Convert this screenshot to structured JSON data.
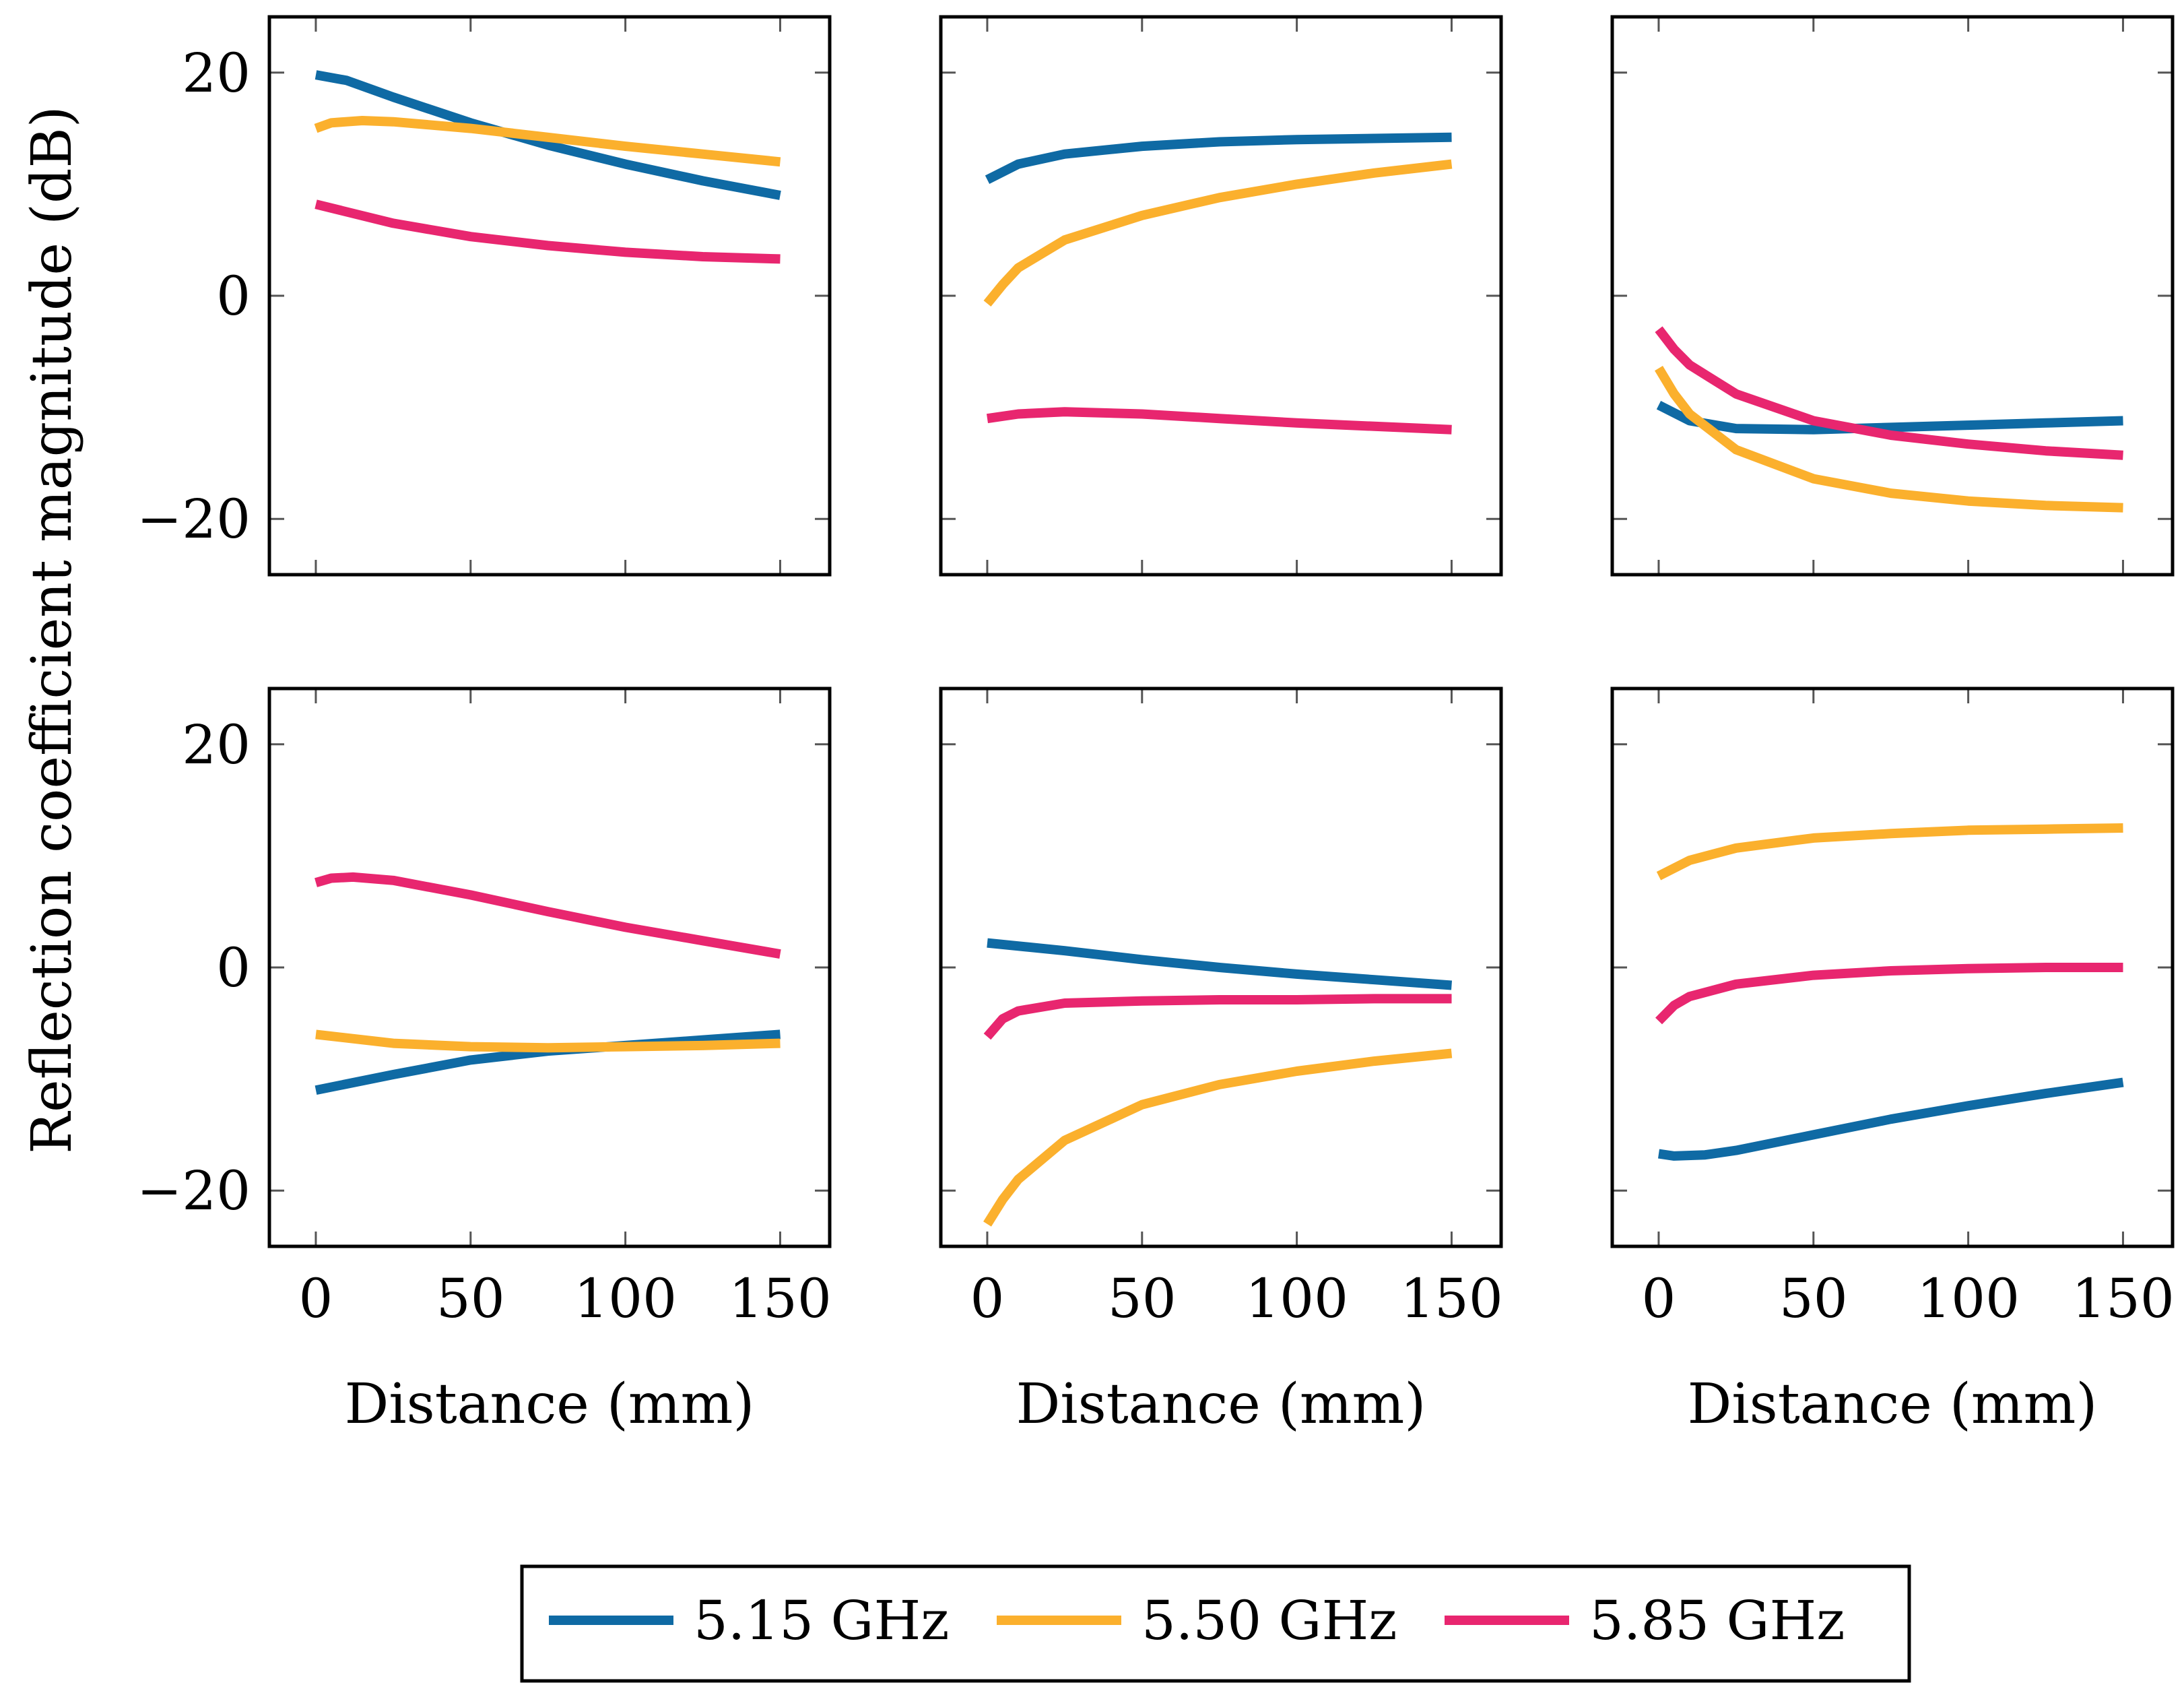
{
  "chart_data": {
    "type": "line",
    "layout": "2 rows x 3 columns",
    "shared_x": true,
    "shared_y": true,
    "ylabel": "Reflection coefficient magnitude (dB)",
    "xlabel": "Distance (mm)",
    "xlim": [
      -15,
      166
    ],
    "ylim": [
      -25,
      25
    ],
    "xticks": [
      0,
      50,
      100,
      150
    ],
    "yticks": [
      20,
      0,
      -20
    ],
    "ytick_labels": [
      "20",
      "0",
      "−20"
    ],
    "legend": {
      "placement": "bottom-center",
      "entries": [
        {
          "label": "5.15 GHz",
          "color": "#0f6aa4"
        },
        {
          "label": "5.50 GHz",
          "color": "#fbb02d"
        },
        {
          "label": "5.85 GHz",
          "color": "#e8266f"
        }
      ]
    },
    "panels": [
      {
        "row": 1,
        "col": 1,
        "series": [
          {
            "name": "5.15 GHz",
            "x": [
              0,
              10,
              25,
              50,
              75,
              100,
              125,
              150
            ],
            "y": [
              19.8,
              19.3,
              17.8,
              15.5,
              13.5,
              11.8,
              10.3,
              9.0
            ]
          },
          {
            "name": "5.50 GHz",
            "x": [
              0,
              5,
              15,
              25,
              50,
              75,
              100,
              125,
              150
            ],
            "y": [
              15.0,
              15.5,
              15.7,
              15.6,
              15.0,
              14.2,
              13.4,
              12.7,
              12.0
            ]
          },
          {
            "name": "5.85 GHz",
            "x": [
              0,
              25,
              50,
              75,
              100,
              125,
              150
            ],
            "y": [
              8.2,
              6.5,
              5.3,
              4.5,
              3.9,
              3.5,
              3.3
            ]
          }
        ]
      },
      {
        "row": 1,
        "col": 2,
        "series": [
          {
            "name": "5.15 GHz",
            "x": [
              0,
              10,
              25,
              50,
              75,
              100,
              125,
              150
            ],
            "y": [
              10.4,
              11.8,
              12.7,
              13.4,
              13.8,
              14.0,
              14.1,
              14.2
            ]
          },
          {
            "name": "5.50 GHz",
            "x": [
              0,
              5,
              10,
              25,
              50,
              75,
              100,
              125,
              150
            ],
            "y": [
              -0.7,
              1.0,
              2.5,
              5.0,
              7.2,
              8.8,
              10.0,
              11.0,
              11.8
            ]
          },
          {
            "name": "5.85 GHz",
            "x": [
              0,
              10,
              25,
              50,
              75,
              100,
              125,
              150
            ],
            "y": [
              -11.0,
              -10.6,
              -10.4,
              -10.6,
              -11.0,
              -11.4,
              -11.7,
              -12.0
            ]
          }
        ]
      },
      {
        "row": 1,
        "col": 3,
        "series": [
          {
            "name": "5.15 GHz",
            "x": [
              0,
              10,
              25,
              50,
              75,
              100,
              125,
              150
            ],
            "y": [
              -9.8,
              -11.2,
              -11.9,
              -12.0,
              -11.8,
              -11.6,
              -11.4,
              -11.2
            ]
          },
          {
            "name": "5.50 GHz",
            "x": [
              0,
              5,
              10,
              25,
              50,
              75,
              100,
              125,
              150
            ],
            "y": [
              -6.5,
              -8.8,
              -10.6,
              -13.8,
              -16.4,
              -17.7,
              -18.4,
              -18.8,
              -19.0
            ]
          },
          {
            "name": "5.85 GHz",
            "x": [
              0,
              5,
              10,
              25,
              50,
              75,
              100,
              125,
              150
            ],
            "y": [
              -3.0,
              -4.8,
              -6.2,
              -8.8,
              -11.2,
              -12.5,
              -13.3,
              -13.9,
              -14.3
            ]
          }
        ]
      },
      {
        "row": 2,
        "col": 1,
        "series": [
          {
            "name": "5.15 GHz",
            "x": [
              0,
              25,
              50,
              75,
              100,
              125,
              150
            ],
            "y": [
              -11.0,
              -9.6,
              -8.3,
              -7.5,
              -7.0,
              -6.5,
              -6.0
            ]
          },
          {
            "name": "5.50 GHz",
            "x": [
              0,
              25,
              50,
              75,
              100,
              125,
              150
            ],
            "y": [
              -6.0,
              -6.8,
              -7.1,
              -7.2,
              -7.1,
              -7.0,
              -6.8
            ]
          },
          {
            "name": "5.85 GHz",
            "x": [
              0,
              5,
              12,
              25,
              50,
              75,
              100,
              125,
              150
            ],
            "y": [
              7.6,
              8.0,
              8.1,
              7.8,
              6.5,
              5.0,
              3.6,
              2.4,
              1.2
            ]
          }
        ]
      },
      {
        "row": 2,
        "col": 2,
        "series": [
          {
            "name": "5.15 GHz",
            "x": [
              0,
              25,
              50,
              75,
              100,
              125,
              150
            ],
            "y": [
              2.2,
              1.5,
              0.7,
              0.0,
              -0.6,
              -1.1,
              -1.6
            ]
          },
          {
            "name": "5.50 GHz",
            "x": [
              0,
              5,
              10,
              25,
              50,
              75,
              100,
              125,
              150
            ],
            "y": [
              -23.0,
              -20.8,
              -19.0,
              -15.5,
              -12.3,
              -10.5,
              -9.3,
              -8.4,
              -7.7
            ]
          },
          {
            "name": "5.85 GHz",
            "x": [
              0,
              5,
              10,
              25,
              50,
              75,
              100,
              125,
              150
            ],
            "y": [
              -6.2,
              -4.6,
              -3.9,
              -3.2,
              -3.0,
              -2.9,
              -2.9,
              -2.8,
              -2.8
            ]
          }
        ]
      },
      {
        "row": 2,
        "col": 3,
        "series": [
          {
            "name": "5.15 GHz",
            "x": [
              0,
              5,
              15,
              25,
              50,
              75,
              100,
              125,
              150
            ],
            "y": [
              -16.7,
              -16.9,
              -16.8,
              -16.4,
              -15.0,
              -13.6,
              -12.4,
              -11.3,
              -10.3
            ]
          },
          {
            "name": "5.50 GHz",
            "x": [
              0,
              10,
              25,
              50,
              75,
              100,
              125,
              150
            ],
            "y": [
              8.2,
              9.6,
              10.7,
              11.6,
              12.0,
              12.3,
              12.4,
              12.5
            ]
          },
          {
            "name": "5.85 GHz",
            "x": [
              0,
              5,
              10,
              25,
              50,
              75,
              100,
              125,
              150
            ],
            "y": [
              -4.8,
              -3.4,
              -2.6,
              -1.5,
              -0.7,
              -0.3,
              -0.1,
              0.0,
              0.0
            ]
          }
        ]
      }
    ]
  }
}
